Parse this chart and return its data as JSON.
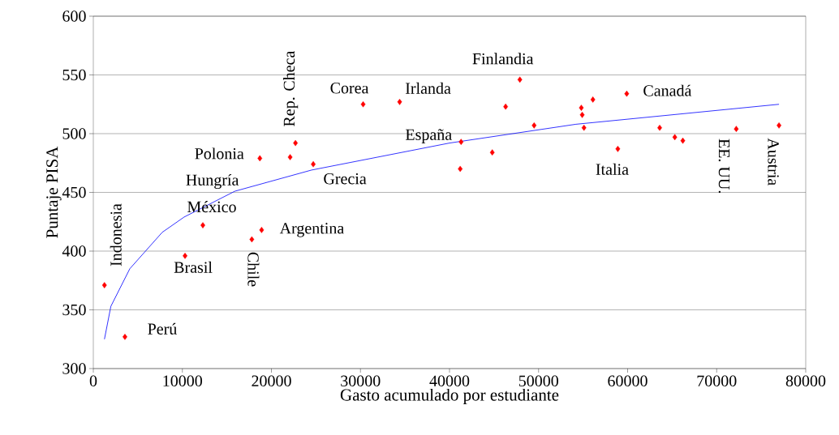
{
  "chart_data": {
    "type": "scatter",
    "xlabel": "Gasto acumulado por estudiante",
    "ylabel": "Puntaje PISA",
    "xlim": [
      0,
      80000
    ],
    "ylim": [
      300,
      600
    ],
    "xticks": [
      0,
      10000,
      20000,
      30000,
      40000,
      50000,
      60000,
      70000,
      80000
    ],
    "yticks": [
      300,
      350,
      400,
      450,
      500,
      550,
      600
    ],
    "grid": "y",
    "marker": "diamond",
    "series": [
      {
        "color": "#ff0000",
        "x": [
          1250,
          3550,
          10300,
          12300,
          17800,
          18900,
          18700,
          22100,
          22700,
          24700,
          30300,
          34400,
          47900,
          46300,
          49500,
          41300,
          44800,
          41200,
          54800,
          54900,
          56100,
          55100,
          59900,
          58900,
          63600,
          65300,
          66200,
          72200,
          77000
        ],
        "values": [
          371,
          327,
          396,
          422,
          410,
          418,
          479,
          480,
          492,
          474,
          525,
          527,
          546,
          523,
          507,
          493,
          484,
          470,
          522,
          516,
          529,
          505,
          534,
          487,
          505,
          497,
          494,
          504,
          507
        ]
      },
      {
        "type": "line",
        "color": "#0000ff",
        "marker": "none",
        "x": [
          1250,
          1970,
          4100,
          7740,
          10200,
          15900,
          24500,
          40000,
          54200,
          77000
        ],
        "values": [
          325,
          353,
          385,
          416,
          429,
          451,
          469,
          492,
          508,
          525
        ]
      }
    ],
    "annotations": [
      {
        "text": "Indonesia",
        "x": 1250,
        "y": 371
      },
      {
        "text": "Perú",
        "x": 3550,
        "y": 327
      },
      {
        "text": "Brasil",
        "x": 10300,
        "y": 396
      },
      {
        "text": "México",
        "x": 12300,
        "y": 422
      },
      {
        "text": "Chile",
        "x": 17800,
        "y": 410
      },
      {
        "text": "Argentina",
        "x": 18900,
        "y": 418
      },
      {
        "text": "Polonia",
        "x": 18700,
        "y": 479
      },
      "Hungría",
      {
        "text": "Rep. Checa",
        "x": 22700,
        "y": 492
      },
      {
        "text": "Grecia",
        "x": 24700,
        "y": 474
      },
      {
        "text": "Corea",
        "x": 30300,
        "y": 525
      },
      {
        "text": "Irlanda",
        "x": 34400,
        "y": 527
      },
      {
        "text": "Finlandia",
        "x": 47900,
        "y": 546
      },
      {
        "text": "España",
        "x": 41300,
        "y": 493
      },
      {
        "text": "Canadá",
        "x": 59900,
        "y": 534
      },
      {
        "text": "Italia",
        "x": 58900,
        "y": 487
      },
      {
        "text": "EE. UU.",
        "x": 72200,
        "y": 504
      },
      {
        "text": "Austria",
        "x": 77000,
        "y": 507
      }
    ]
  }
}
